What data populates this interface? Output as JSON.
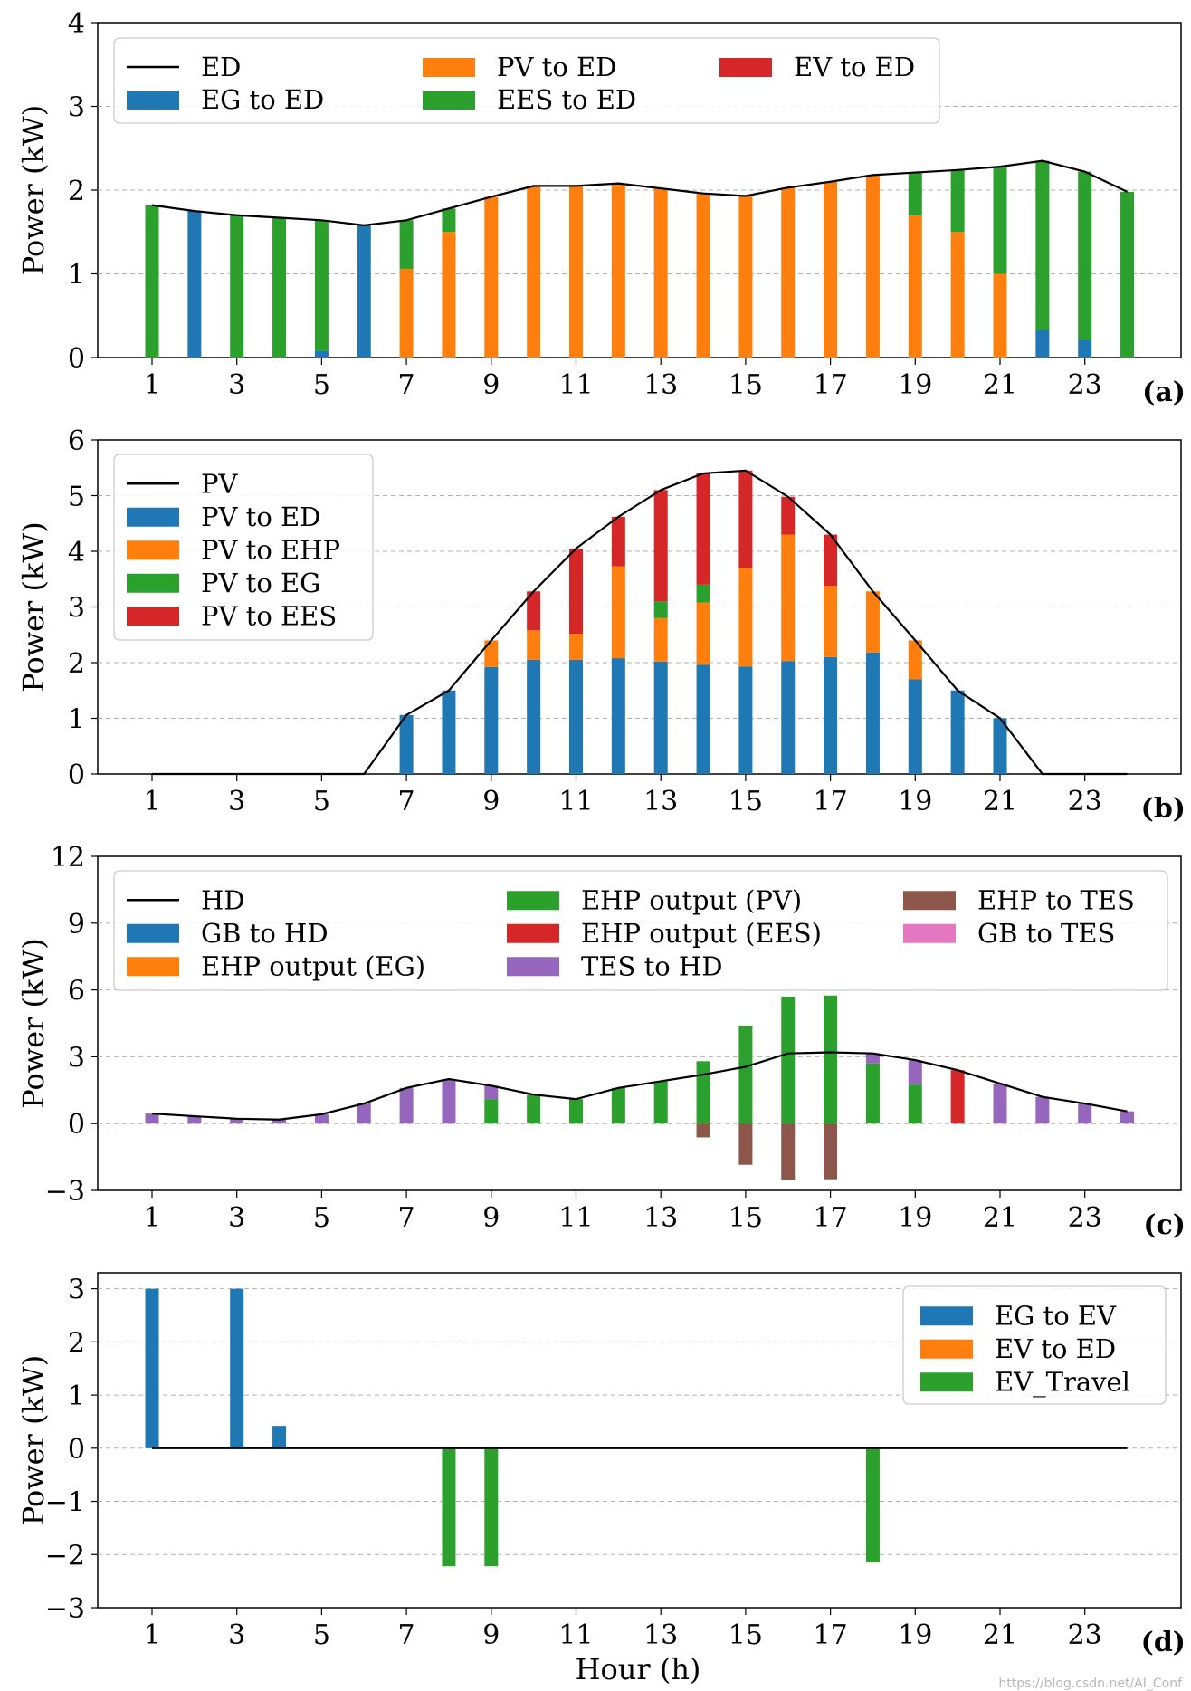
{
  "figure": {
    "xlabel": "Hour (h)",
    "watermark": "https://blog.csdn.net/AI_Conf"
  },
  "colors": {
    "blue": "#1f77b4",
    "orange": "#ff7f0e",
    "green": "#2ca02c",
    "red": "#d62728",
    "purple": "#9467bd",
    "brown": "#8c564b",
    "pink": "#e377c2",
    "line": "#000000",
    "grid": "#b0b0b0"
  },
  "chart_data": [
    {
      "id": "a",
      "type": "bar",
      "panel_label": "(a)",
      "ylabel": "Power (kW)",
      "ylim": [
        0,
        4
      ],
      "yticks": [
        0,
        1,
        2,
        3,
        4
      ],
      "xticks": [
        1,
        3,
        5,
        7,
        9,
        11,
        13,
        15,
        17,
        19,
        21,
        23
      ],
      "grid": "y-dashed",
      "legend": {
        "placement": "top-left",
        "ncol": 3
      },
      "x": [
        1,
        2,
        3,
        4,
        5,
        6,
        7,
        8,
        9,
        10,
        11,
        12,
        13,
        14,
        15,
        16,
        17,
        18,
        19,
        20,
        21,
        22,
        23,
        24
      ],
      "line": {
        "name": "ED",
        "values": [
          1.82,
          1.75,
          1.7,
          1.67,
          1.64,
          1.58,
          1.64,
          1.78,
          1.92,
          2.05,
          2.05,
          2.08,
          2.02,
          1.96,
          1.93,
          2.03,
          2.1,
          2.18,
          2.21,
          2.24,
          2.28,
          2.35,
          2.22,
          1.98
        ]
      },
      "series": [
        {
          "name": "EG to ED",
          "color": "blue",
          "values": [
            0,
            1.75,
            0,
            0,
            0.08,
            1.58,
            0,
            0,
            0,
            0,
            0,
            0,
            0,
            0,
            0,
            0,
            0,
            0,
            0,
            0,
            0,
            0.33,
            0.21,
            0
          ]
        },
        {
          "name": "PV to ED",
          "color": "orange",
          "values": [
            0,
            0,
            0,
            0,
            0,
            0,
            1.06,
            1.5,
            1.92,
            2.05,
            2.05,
            2.08,
            2.02,
            1.96,
            1.93,
            2.03,
            2.1,
            2.18,
            1.7,
            1.5,
            1.0,
            0,
            0,
            0
          ]
        },
        {
          "name": "EES to ED",
          "color": "green",
          "values": [
            1.82,
            0,
            1.7,
            1.67,
            1.56,
            0,
            0.58,
            0.28,
            0,
            0,
            0,
            0,
            0,
            0,
            0,
            0,
            0,
            0,
            0.51,
            0.74,
            1.28,
            2.02,
            2.01,
            1.98
          ]
        },
        {
          "name": "EV to ED",
          "color": "red",
          "values": [
            0,
            0,
            0,
            0,
            0,
            0,
            0,
            0,
            0,
            0,
            0,
            0,
            0,
            0,
            0,
            0,
            0,
            0,
            0,
            0,
            0,
            0,
            0,
            0
          ]
        }
      ]
    },
    {
      "id": "b",
      "type": "bar",
      "panel_label": "(b)",
      "ylabel": "Power (kW)",
      "ylim": [
        0,
        6
      ],
      "yticks": [
        0,
        1,
        2,
        3,
        4,
        5,
        6
      ],
      "xticks": [
        1,
        3,
        5,
        7,
        9,
        11,
        13,
        15,
        17,
        19,
        21,
        23
      ],
      "grid": "y-dashed",
      "legend": {
        "placement": "top-left",
        "ncol": 1
      },
      "x": [
        1,
        2,
        3,
        4,
        5,
        6,
        7,
        8,
        9,
        10,
        11,
        12,
        13,
        14,
        15,
        16,
        17,
        18,
        19,
        20,
        21,
        22,
        23,
        24
      ],
      "line": {
        "name": "PV",
        "values": [
          0,
          0,
          0,
          0,
          0,
          0,
          1.06,
          1.5,
          2.4,
          3.28,
          4.05,
          4.62,
          5.1,
          5.4,
          5.45,
          4.98,
          4.3,
          3.28,
          2.4,
          1.5,
          1.0,
          0,
          0,
          0
        ]
      },
      "series": [
        {
          "name": "PV to ED",
          "color": "blue",
          "values": [
            0,
            0,
            0,
            0,
            0,
            0,
            1.06,
            1.5,
            1.92,
            2.05,
            2.05,
            2.08,
            2.02,
            1.96,
            1.93,
            2.03,
            2.1,
            2.18,
            1.7,
            1.5,
            1.0,
            0,
            0,
            0
          ]
        },
        {
          "name": "PV to EHP",
          "color": "orange",
          "values": [
            0,
            0,
            0,
            0,
            0,
            0,
            0,
            0,
            0.48,
            0.53,
            0.47,
            1.65,
            0.78,
            1.12,
            1.77,
            2.27,
            1.28,
            1.1,
            0.7,
            0,
            0,
            0,
            0,
            0
          ]
        },
        {
          "name": "PV to EG",
          "color": "green",
          "values": [
            0,
            0,
            0,
            0,
            0,
            0,
            0,
            0,
            0,
            0,
            0,
            0,
            0.3,
            0.32,
            0,
            0,
            0,
            0,
            0,
            0,
            0,
            0,
            0,
            0
          ]
        },
        {
          "name": "PV to EES",
          "color": "red",
          "values": [
            0,
            0,
            0,
            0,
            0,
            0,
            0,
            0,
            0,
            0.7,
            1.53,
            0.89,
            2.0,
            2.0,
            1.75,
            0.68,
            0.92,
            0,
            0,
            0,
            0,
            0,
            0,
            0
          ]
        }
      ]
    },
    {
      "id": "c",
      "type": "bar",
      "panel_label": "(c)",
      "ylabel": "Power (kW)",
      "ylim": [
        -3,
        12
      ],
      "yticks": [
        -3,
        0,
        3,
        6,
        9,
        12
      ],
      "xticks": [
        1,
        3,
        5,
        7,
        9,
        11,
        13,
        15,
        17,
        19,
        21,
        23
      ],
      "grid": "y-dashed",
      "legend": {
        "placement": "top",
        "ncol": 3
      },
      "x": [
        1,
        2,
        3,
        4,
        5,
        6,
        7,
        8,
        9,
        10,
        11,
        12,
        13,
        14,
        15,
        16,
        17,
        18,
        19,
        20,
        21,
        22,
        23,
        24
      ],
      "line": {
        "name": "HD",
        "values": [
          0.45,
          0.33,
          0.22,
          0.18,
          0.42,
          0.9,
          1.6,
          2.0,
          1.7,
          1.3,
          1.1,
          1.6,
          1.9,
          2.2,
          2.55,
          3.15,
          3.2,
          3.15,
          2.85,
          2.4,
          1.8,
          1.2,
          0.9,
          0.55
        ]
      },
      "series": [
        {
          "name": "GB to HD",
          "color": "blue",
          "values": [
            0,
            0,
            0,
            0,
            0,
            0,
            0,
            0,
            0,
            0,
            0,
            0,
            0,
            0,
            0,
            0,
            0,
            0,
            0,
            0,
            0,
            0,
            0,
            0
          ]
        },
        {
          "name": "EHP output (EG)",
          "color": "orange",
          "values": [
            0,
            0,
            0,
            0,
            0,
            0,
            0,
            0,
            0,
            0,
            0,
            0,
            0,
            0,
            0,
            0,
            0,
            0,
            0,
            0,
            0,
            0,
            0,
            0
          ]
        },
        {
          "name": "EHP output (PV)",
          "color": "green",
          "values": [
            0,
            0,
            0,
            0,
            0,
            0,
            0,
            0,
            1.1,
            1.3,
            1.1,
            1.6,
            1.9,
            2.8,
            4.4,
            5.7,
            5.75,
            2.7,
            1.75,
            0,
            0,
            0,
            0,
            0
          ]
        },
        {
          "name": "EHP output (EES)",
          "color": "red",
          "values": [
            0,
            0,
            0,
            0,
            0,
            0,
            0,
            0,
            0,
            0,
            0,
            0,
            0,
            0,
            0,
            0,
            0,
            0,
            0,
            2.4,
            0,
            0,
            0,
            0
          ]
        },
        {
          "name": "TES to HD",
          "color": "purple",
          "values": [
            0.45,
            0.33,
            0.22,
            0.18,
            0.42,
            0.9,
            1.6,
            2.0,
            0.6,
            0,
            0,
            0,
            0,
            0,
            0,
            0,
            0,
            0.45,
            1.1,
            0,
            1.8,
            1.2,
            0.9,
            0.55
          ]
        },
        {
          "name": "EHP to TES",
          "color": "brown",
          "values": [
            0,
            0,
            0,
            0,
            0,
            0,
            0,
            0,
            0,
            0,
            0,
            0,
            0,
            -0.62,
            -1.85,
            -2.55,
            -2.5,
            0,
            0,
            0,
            0,
            0,
            0,
            0
          ]
        },
        {
          "name": "GB to TES",
          "color": "pink",
          "values": [
            0,
            0,
            0,
            0,
            0,
            0,
            0,
            0,
            0,
            0,
            0,
            0,
            0,
            0,
            0,
            0,
            0,
            0,
            0,
            0,
            0,
            0,
            0,
            0
          ]
        }
      ]
    },
    {
      "id": "d",
      "type": "bar",
      "panel_label": "(d)",
      "ylabel": "Power (kW)",
      "ylim": [
        -3,
        3.3
      ],
      "yticks": [
        -3,
        -2,
        -1,
        0,
        1,
        2,
        3
      ],
      "xticks": [
        1,
        3,
        5,
        7,
        9,
        11,
        13,
        15,
        17,
        19,
        21,
        23
      ],
      "grid": "y-dashed",
      "legend": {
        "placement": "top-right",
        "ncol": 1
      },
      "x": [
        1,
        2,
        3,
        4,
        5,
        6,
        7,
        8,
        9,
        10,
        11,
        12,
        13,
        14,
        15,
        16,
        17,
        18,
        19,
        20,
        21,
        22,
        23,
        24
      ],
      "line": {
        "name": "",
        "values": [
          0,
          0,
          0,
          0,
          0,
          0,
          0,
          0,
          0,
          0,
          0,
          0,
          0,
          0,
          0,
          0,
          0,
          0,
          0,
          0,
          0,
          0,
          0,
          0
        ]
      },
      "series": [
        {
          "name": "EG to EV",
          "color": "blue",
          "values": [
            3.0,
            0,
            3.0,
            0.42,
            0,
            0,
            0,
            0,
            0,
            0,
            0,
            0,
            0,
            0,
            0,
            0,
            0,
            0,
            0,
            0,
            0,
            0,
            0,
            0
          ]
        },
        {
          "name": "EV to ED",
          "color": "orange",
          "values": [
            0,
            0,
            0,
            0,
            0,
            0,
            0,
            0,
            0,
            0,
            0,
            0,
            0,
            0,
            0,
            0,
            0,
            0,
            0,
            0,
            0,
            0,
            0,
            0
          ]
        },
        {
          "name": "EV_Travel",
          "color": "green",
          "values": [
            0,
            0,
            0,
            0,
            0,
            0,
            0,
            -2.22,
            -2.22,
            0,
            0,
            0,
            0,
            0,
            0,
            0,
            0,
            -2.15,
            0,
            0,
            0,
            0,
            0,
            0
          ]
        }
      ]
    }
  ]
}
